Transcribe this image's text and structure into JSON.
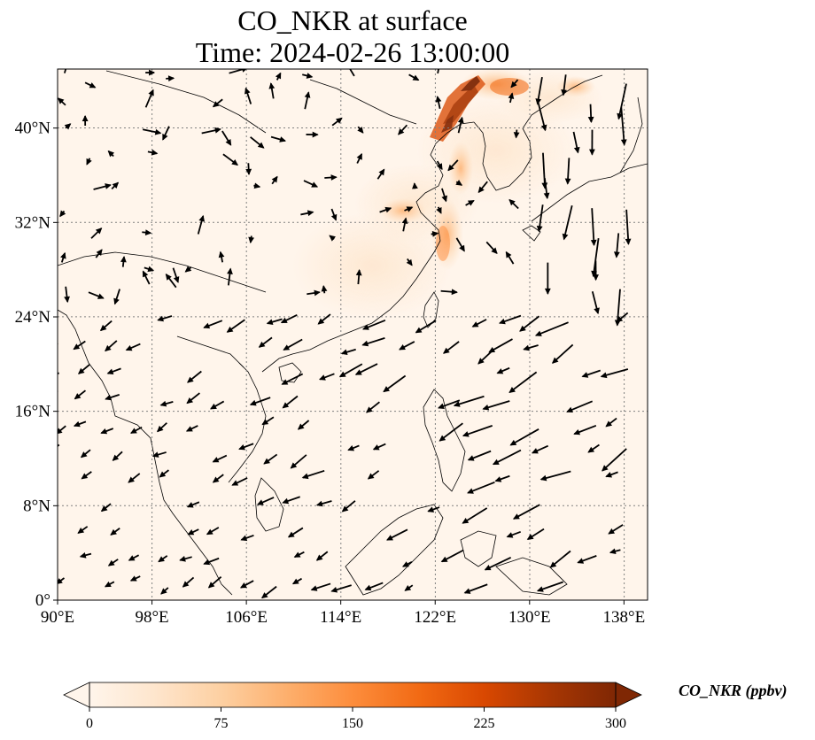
{
  "title": {
    "line1": "CO_NKR at surface",
    "line2": "Time: 2024-02-26 13:00:00"
  },
  "map": {
    "lon_range": [
      90,
      140
    ],
    "lat_range": [
      0,
      45
    ],
    "grid": true,
    "x_ticks": [
      "90°E",
      "98°E",
      "106°E",
      "114°E",
      "122°E",
      "130°E",
      "138°E"
    ],
    "x_tick_values": [
      90,
      98,
      106,
      114,
      122,
      130,
      138
    ],
    "y_ticks": [
      "0°",
      "8°N",
      "16°N",
      "24°N",
      "32°N",
      "40°N"
    ],
    "y_tick_values": [
      0,
      8,
      16,
      24,
      32,
      40
    ]
  },
  "colorbar": {
    "label": "CO_NKR (ppbv)",
    "ticks": [
      "0",
      "75",
      "150",
      "225",
      "300"
    ],
    "min": 0,
    "max": 300,
    "colors": [
      "#fff5eb",
      "#fee6ce",
      "#fdd0a2",
      "#fdae6b",
      "#fd8d3c",
      "#f16913",
      "#d94801",
      "#a63603",
      "#7f2704"
    ]
  },
  "colors": {
    "background": "#fff5eb",
    "coastline": "#000000",
    "grid": "#808080",
    "arrow": "#000000"
  }
}
